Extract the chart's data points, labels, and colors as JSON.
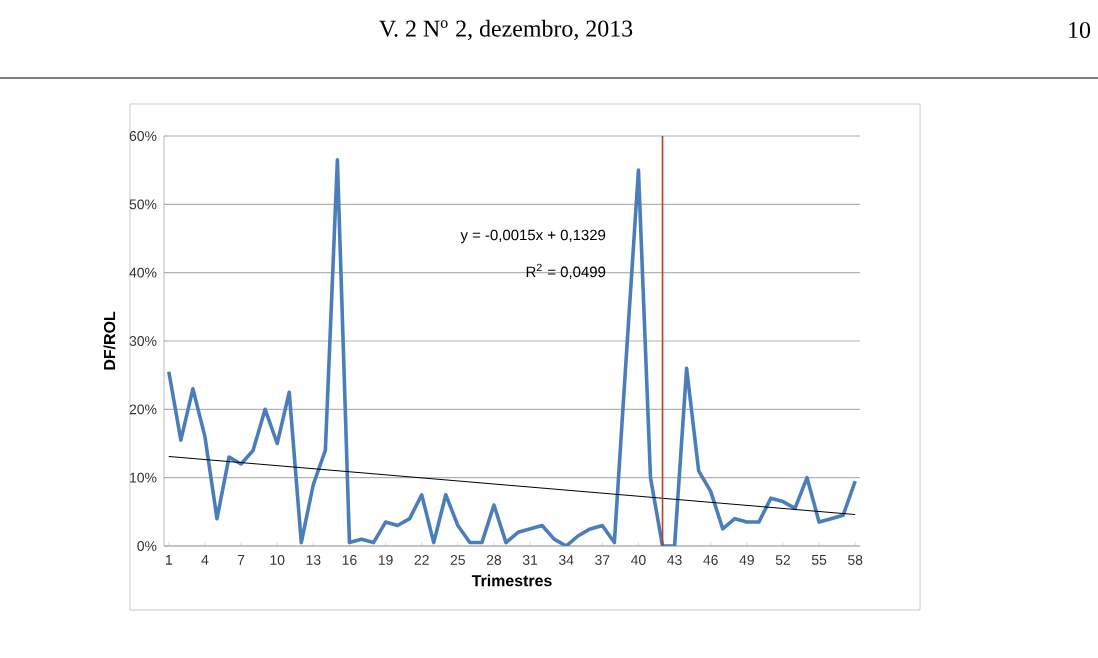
{
  "chart_data": {
    "type": "line",
    "xlabel": "Trimestres",
    "ylabel": "DF/ROL",
    "x": [
      1,
      2,
      3,
      4,
      5,
      6,
      7,
      8,
      9,
      10,
      11,
      12,
      13,
      14,
      15,
      16,
      17,
      18,
      19,
      20,
      21,
      22,
      23,
      24,
      25,
      26,
      27,
      28,
      29,
      30,
      31,
      32,
      33,
      34,
      35,
      36,
      37,
      38,
      39,
      40,
      41,
      42,
      43,
      44,
      45,
      46,
      47,
      48,
      49,
      50,
      51,
      52,
      53,
      54,
      55,
      56,
      57,
      58
    ],
    "series": [
      {
        "color": "#4a7ebb",
        "values": [
          25.5,
          15.5,
          23,
          16,
          4,
          13,
          12,
          14,
          20,
          15,
          22.5,
          0.5,
          9,
          14,
          56.5,
          0.5,
          1,
          0.5,
          3.5,
          3,
          4,
          7.5,
          0.5,
          7.5,
          3,
          0.5,
          0.5,
          6,
          0.5,
          2,
          2.5,
          3,
          1,
          0,
          1.5,
          2.5,
          3,
          0.5,
          28,
          55,
          10,
          0,
          0,
          26,
          11,
          8,
          2.5,
          4,
          3.5,
          3.5,
          7,
          6.5,
          5.5,
          10,
          3.5,
          4,
          4.5,
          9.5
        ]
      },
      {
        "type": "line",
        "color": "#000000",
        "x": [
          1,
          58
        ],
        "values": [
          13.1,
          4.6
        ]
      }
    ],
    "xlim": [
      0.6,
      58.4
    ],
    "xticks": [
      1,
      4,
      7,
      10,
      13,
      16,
      19,
      22,
      25,
      28,
      31,
      34,
      37,
      40,
      43,
      46,
      49,
      52,
      55,
      58
    ],
    "ylim": [
      0,
      60
    ],
    "yticks": [
      {
        "value": 0,
        "label": "0%"
      },
      {
        "value": 10,
        "label": "10%"
      },
      {
        "value": 20,
        "label": "20%"
      },
      {
        "value": 30,
        "label": "30%"
      },
      {
        "value": 40,
        "label": "40%"
      },
      {
        "value": 50,
        "label": "50%"
      },
      {
        "value": 60,
        "label": "60%"
      }
    ],
    "grid": "y",
    "marker": "none",
    "line_style": "solid",
    "ref_lines": [
      {
        "axis": "x",
        "value": 42,
        "color": "#c0392b"
      }
    ],
    "annotations": [
      "y = -0,0015x + 0,1329",
      "R$^{2}$ = 0,0499",
      "V. 2 N$^{o}$ 2, dezembro, 2013",
      "10"
    ]
  }
}
